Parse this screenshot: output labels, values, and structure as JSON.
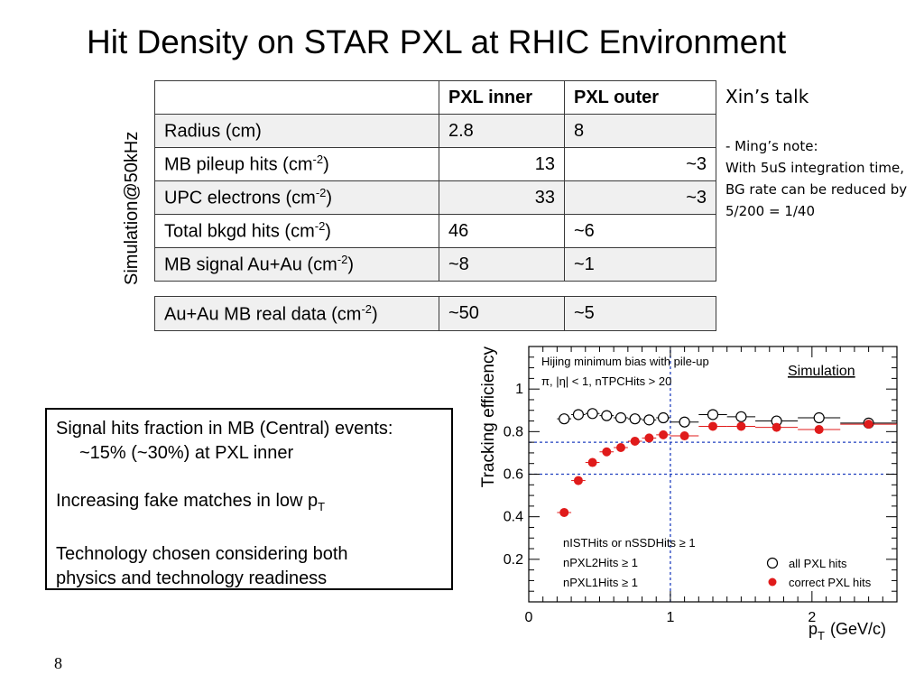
{
  "title": "Hit Density on STAR PXL at RHIC Environment",
  "side_label": "Simulation@50kHz",
  "table": {
    "headers": [
      "",
      "PXL inner",
      "PXL outer"
    ],
    "rows": [
      {
        "label": "Radius (cm)",
        "sup": "",
        "close": "",
        "inner": "2.8",
        "outer": "8"
      },
      {
        "label": "MB pileup hits (cm",
        "sup": "-2",
        "close": ")",
        "inner": "13",
        "outer": "~3"
      },
      {
        "label": "UPC electrons (cm",
        "sup": "-2",
        "close": ")",
        "inner": "33",
        "outer": "~3"
      },
      {
        "label": "Total bkgd hits (cm",
        "sup": "-2",
        "close": ")",
        "inner": "46",
        "outer": "~6"
      },
      {
        "label": "MB signal Au+Au (cm",
        "sup": "-2",
        "close": ")",
        "inner": "~8",
        "outer": "~1"
      }
    ],
    "real_row": {
      "label": "Au+Au MB real data (cm",
      "sup": "-2",
      "close": ")",
      "inner": "~50",
      "outer": "~5"
    }
  },
  "notes": {
    "talk": "Xin’s talk",
    "lines": [
      "- Ming’s note:",
      "With 5uS integration time,",
      "BG rate can be reduced by",
      "5/200 = 1/40"
    ]
  },
  "summary": {
    "line1": "Signal hits fraction in MB (Central) events:",
    "line2": "~15% (~30%) at PXL inner",
    "line3_main": "Increasing fake matches in low p",
    "line3_sub": "T",
    "line4": "Technology chosen considering both",
    "line5": "physics and technology readiness"
  },
  "page_number": "8",
  "chart_data": {
    "type": "scatter",
    "title": "",
    "annotations": [
      "Hijing minimum bias with pile-up",
      "π, |η| < 1, nTPCHits > 20",
      "Simulation",
      "nISTHits or nSSDHits ≥ 1",
      "nPXL2Hits ≥ 1",
      "nPXL1Hits ≥ 1"
    ],
    "xlabel_main": "p",
    "xlabel_sub": "T",
    "xlabel_unit": "(GeV/c)",
    "ylabel": "Tracking efficiency",
    "xlim": [
      0,
      2.6
    ],
    "ylim": [
      0,
      1.2
    ],
    "x_ticks": [
      0,
      1,
      2
    ],
    "y_ticks": [
      0.2,
      0.4,
      0.6,
      0.8,
      1
    ],
    "y_tick_labels": [
      "0.2",
      "0.4",
      "0.6",
      "0.8",
      "1"
    ],
    "x_tick_labels": [
      "0",
      "1",
      "2"
    ],
    "reference_lines": {
      "x": 1.0,
      "y": [
        0.75,
        0.6
      ]
    },
    "legend_position": "bottom-right",
    "series": [
      {
        "name": "all PXL hits",
        "color": "#000000",
        "marker": "open-circle",
        "x": [
          0.25,
          0.35,
          0.45,
          0.55,
          0.65,
          0.75,
          0.85,
          0.95,
          1.1,
          1.3,
          1.5,
          1.75,
          2.05,
          2.4
        ],
        "x_err": [
          0.05,
          0.05,
          0.05,
          0.05,
          0.05,
          0.05,
          0.05,
          0.05,
          0.1,
          0.1,
          0.1,
          0.15,
          0.15,
          0.2
        ],
        "y": [
          0.86,
          0.88,
          0.885,
          0.875,
          0.865,
          0.86,
          0.855,
          0.865,
          0.845,
          0.88,
          0.87,
          0.85,
          0.865,
          0.84
        ]
      },
      {
        "name": "correct PXL hits",
        "color": "#e01b1b",
        "marker": "filled-circle",
        "x": [
          0.25,
          0.35,
          0.45,
          0.55,
          0.65,
          0.75,
          0.85,
          0.95,
          1.1,
          1.3,
          1.5,
          1.75,
          2.05,
          2.4
        ],
        "x_err": [
          0.05,
          0.05,
          0.05,
          0.05,
          0.05,
          0.05,
          0.05,
          0.05,
          0.1,
          0.1,
          0.1,
          0.15,
          0.15,
          0.2
        ],
        "y": [
          0.42,
          0.57,
          0.655,
          0.705,
          0.725,
          0.755,
          0.77,
          0.785,
          0.78,
          0.825,
          0.825,
          0.82,
          0.81,
          0.835
        ]
      }
    ]
  }
}
